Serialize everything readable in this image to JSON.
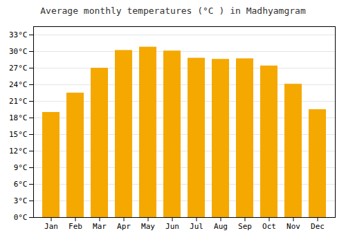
{
  "chart_data": {
    "type": "bar",
    "title": "Average monthly temperatures (°C ) in Madhyamgram",
    "categories": [
      "Jan",
      "Feb",
      "Mar",
      "Apr",
      "May",
      "Jun",
      "Jul",
      "Aug",
      "Sep",
      "Oct",
      "Nov",
      "Dec"
    ],
    "values": [
      19.0,
      22.5,
      27.0,
      30.2,
      30.8,
      30.1,
      28.8,
      28.6,
      28.7,
      27.4,
      24.1,
      19.5
    ],
    "color": "#F5A800",
    "ylim": [
      0,
      34.5
    ],
    "yticks": [
      {
        "value": 0,
        "label": "0°C"
      },
      {
        "value": 3,
        "label": "3°C"
      },
      {
        "value": 6,
        "label": "6°C"
      },
      {
        "value": 9,
        "label": "9°C"
      },
      {
        "value": 12,
        "label": "12°C"
      },
      {
        "value": 15,
        "label": "15°C"
      },
      {
        "value": 18,
        "label": "18°C"
      },
      {
        "value": 21,
        "label": "21°C"
      },
      {
        "value": 24,
        "label": "24°C"
      },
      {
        "value": 27,
        "label": "27°C"
      },
      {
        "value": 30,
        "label": "30°C"
      },
      {
        "value": 33,
        "label": "33°C"
      }
    ],
    "grid": true
  }
}
